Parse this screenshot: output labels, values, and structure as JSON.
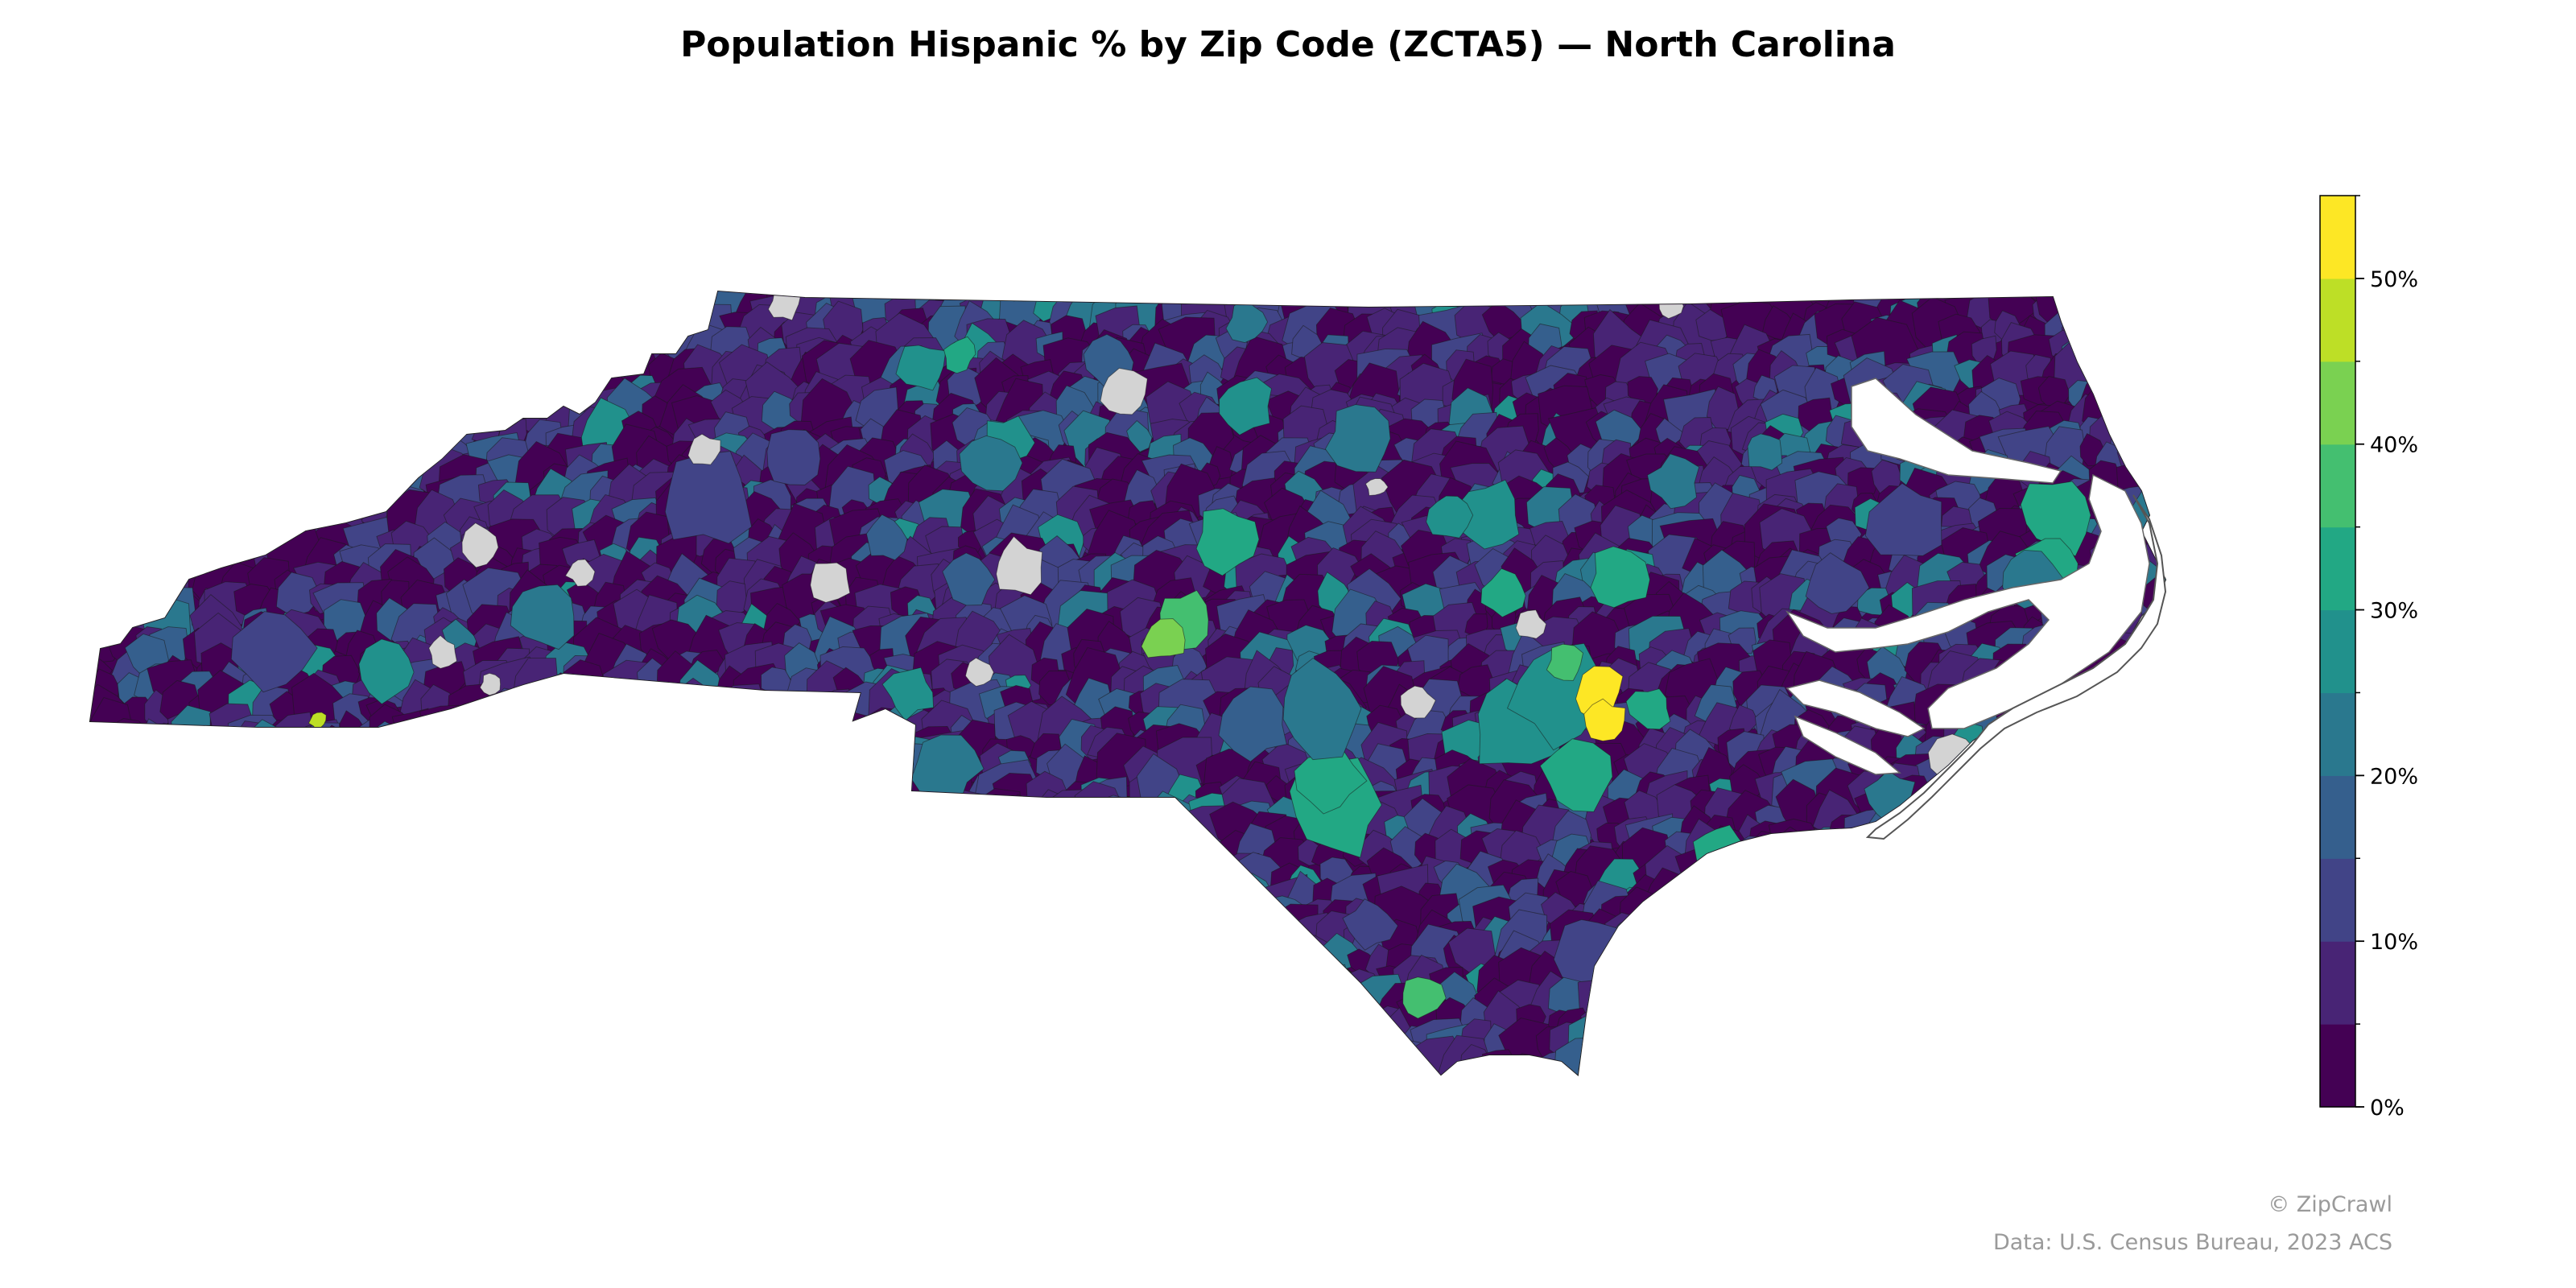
{
  "title": "Population Hispanic % by Zip Code (ZCTA5) — North Carolina",
  "state": "North Carolina",
  "map": {
    "type": "choropleth",
    "metric": "Population Hispanic %",
    "unit": "%",
    "geography": "ZCTA5",
    "no_data_color": "#d3d3d3",
    "boundary_color": "#000000"
  },
  "legend": {
    "type": "colorbar",
    "placement": "right",
    "range": [
      0,
      55
    ],
    "step": 5,
    "bins": [
      {
        "from": 0,
        "to": 5,
        "color": "#440154"
      },
      {
        "from": 5,
        "to": 10,
        "color": "#482475"
      },
      {
        "from": 10,
        "to": 15,
        "color": "#414487"
      },
      {
        "from": 15,
        "to": 20,
        "color": "#355f8d"
      },
      {
        "from": 20,
        "to": 25,
        "color": "#2a788e"
      },
      {
        "from": 25,
        "to": 30,
        "color": "#21918c"
      },
      {
        "from": 30,
        "to": 35,
        "color": "#22a884"
      },
      {
        "from": 35,
        "to": 40,
        "color": "#44bf70"
      },
      {
        "from": 40,
        "to": 45,
        "color": "#7ad151"
      },
      {
        "from": 45,
        "to": 50,
        "color": "#bddf26"
      },
      {
        "from": 50,
        "to": 55,
        "color": "#fde725"
      }
    ],
    "ticks": [
      {
        "value": 0,
        "label": "0%"
      },
      {
        "value": 10,
        "label": "10%"
      },
      {
        "value": 20,
        "label": "20%"
      },
      {
        "value": 30,
        "label": "30%"
      },
      {
        "value": 40,
        "label": "40%"
      },
      {
        "value": 50,
        "label": "50%"
      }
    ]
  },
  "credits": {
    "copyright": "© ZipCrawl",
    "source": "Data: U.S. Census Bureau, 2023 ACS"
  }
}
